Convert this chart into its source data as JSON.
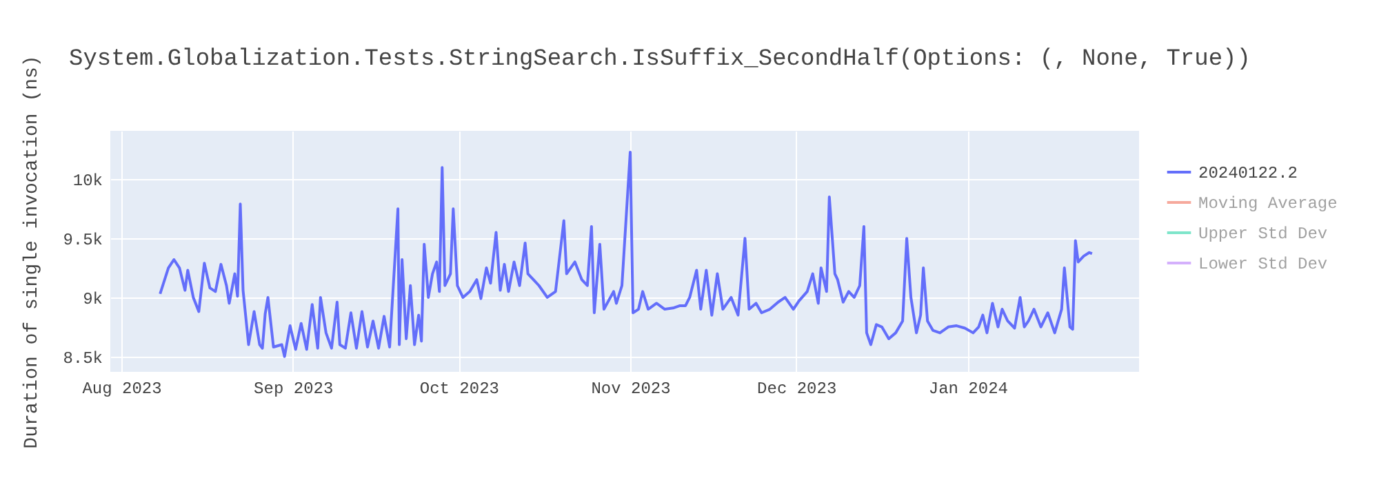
{
  "chart_data": {
    "type": "line",
    "title": "System.Globalization.Tests.StringSearch.IsSuffix_SecondHalf(Options: (, None, True))",
    "ylabel": "Duration of single invocation (ns)",
    "x": [
      "2023-08-08",
      "2023-08-09T12:00",
      "2023-08-10T12:00",
      "2023-08-11T12:00",
      "2023-08-12T12:00",
      "2023-08-13",
      "2023-08-14",
      "2023-08-15",
      "2023-08-16",
      "2023-08-17",
      "2023-08-18",
      "2023-08-19",
      "2023-08-20",
      "2023-08-20T12:00",
      "2023-08-21T12:00",
      "2023-08-22",
      "2023-08-22T12:00",
      "2023-08-23",
      "2023-08-24",
      "2023-08-25",
      "2023-08-26",
      "2023-08-26T12:00",
      "2023-08-27",
      "2023-08-27T12:00",
      "2023-08-28T12:00",
      "2023-08-30",
      "2023-08-30T12:00",
      "2023-08-31T12:00",
      "2023-09-01T12:00",
      "2023-09-02T12:00",
      "2023-09-03T12:00",
      "2023-09-04T12:00",
      "2023-09-05T12:00",
      "2023-09-06",
      "2023-09-07",
      "2023-09-08",
      "2023-09-09",
      "2023-09-09T12:00",
      "2023-09-10T12:00",
      "2023-09-11T12:00",
      "2023-09-12T12:00",
      "2023-09-13T12:00",
      "2023-09-14T12:00",
      "2023-09-15T12:00",
      "2023-09-16T12:00",
      "2023-09-17T12:00",
      "2023-09-18T12:00",
      "2023-09-20",
      "2023-09-20T06:00",
      "2023-09-20T18:00",
      "2023-09-21T12:00",
      "2023-09-22T06:00",
      "2023-09-23",
      "2023-09-23T18:00",
      "2023-09-24T06:00",
      "2023-09-24T18:00",
      "2023-09-25T12:00",
      "2023-09-26T06:00",
      "2023-09-27",
      "2023-09-27T12:00",
      "2023-09-28",
      "2023-09-28T12:00",
      "2023-09-29T12:00",
      "2023-09-30",
      "2023-09-30T18:00",
      "2023-10-01T18:00",
      "2023-10-03",
      "2023-10-04T06:00",
      "2023-10-05",
      "2023-10-06",
      "2023-10-06T18:00",
      "2023-10-07T18:00",
      "2023-10-08T12:00",
      "2023-10-09T06:00",
      "2023-10-10",
      "2023-10-11",
      "2023-10-12",
      "2023-10-13",
      "2023-10-13T12:00",
      "2023-10-14T12:00",
      "2023-10-15T12:00",
      "2023-10-17",
      "2023-10-18T12:00",
      "2023-10-20",
      "2023-10-20T12:00",
      "2023-10-22",
      "2023-10-23T06:00",
      "2023-10-24T06:00",
      "2023-10-25",
      "2023-10-25T12:00",
      "2023-10-26T12:00",
      "2023-10-27T06:00",
      "2023-10-29",
      "2023-10-29T12:00",
      "2023-10-30T12:00",
      "2023-11-01",
      "2023-11-01T12:00",
      "2023-11-02T12:00",
      "2023-11-03T06:00",
      "2023-11-04T06:00",
      "2023-11-05T18:00",
      "2023-11-07T06:00",
      "2023-11-08T18:00",
      "2023-11-10",
      "2023-11-11",
      "2023-11-11T18:00",
      "2023-11-13",
      "2023-11-13T18:00",
      "2023-11-14T18:00",
      "2023-11-15T18:00",
      "2023-11-16T18:00",
      "2023-11-17T18:00",
      "2023-11-19T06:00",
      "2023-11-20T12:00",
      "2023-11-21T18:00",
      "2023-11-22T12:00",
      "2023-11-23T18:00",
      "2023-11-24T18:00",
      "2023-11-26T06:00",
      "2023-11-27T18:00",
      "2023-11-29",
      "2023-11-30T12:00",
      "2023-12-01T12:00",
      "2023-12-03",
      "2023-12-04",
      "2023-12-05",
      "2023-12-05T12:00",
      "2023-12-06T12:00",
      "2023-12-07",
      "2023-12-08",
      "2023-12-08T12:00",
      "2023-12-09T12:00",
      "2023-12-10T12:00",
      "2023-12-11T12:00",
      "2023-12-12T12:00",
      "2023-12-13T06:00",
      "2023-12-13T18:00",
      "2023-12-14T12:00",
      "2023-12-15T12:00",
      "2023-12-16T12:00",
      "2023-12-17T18:00",
      "2023-12-19",
      "2023-12-20T06:00",
      "2023-12-21",
      "2023-12-21T18:00",
      "2023-12-22T18:00",
      "2023-12-23T12:00",
      "2023-12-24",
      "2023-12-24T18:00",
      "2023-12-25T18:00",
      "2023-12-27",
      "2023-12-28T12:00",
      "2023-12-30",
      "2023-12-31T12:00",
      "2024-01-02",
      "2024-01-03",
      "2024-01-03T18:00",
      "2024-01-04T12:00",
      "2024-01-05T12:00",
      "2024-01-06T12:00",
      "2024-01-07T06:00",
      "2024-01-08T06:00",
      "2024-01-09T12:00",
      "2024-01-10T12:00",
      "2024-01-11T06:00",
      "2024-01-12",
      "2024-01-13",
      "2024-01-14T06:00",
      "2024-01-15T12:00",
      "2024-01-16T18:00",
      "2024-01-18",
      "2024-01-18T12:00",
      "2024-01-19T12:00",
      "2024-01-20",
      "2024-01-20T12:00",
      "2024-01-21",
      "2024-01-22",
      "2024-01-23",
      "2024-01-23T12:00"
    ],
    "series": [
      {
        "name": "20240122.2",
        "color": "#636efa",
        "values": [
          9030,
          9250,
          9320,
          9250,
          9060,
          9230,
          9000,
          8880,
          9290,
          9080,
          9050,
          9280,
          9100,
          8950,
          9200,
          9010,
          9790,
          9060,
          8600,
          8880,
          8600,
          8570,
          8860,
          9000,
          8580,
          8600,
          8500,
          8760,
          8560,
          8780,
          8560,
          8940,
          8570,
          9000,
          8700,
          8570,
          8960,
          8600,
          8570,
          8870,
          8570,
          8880,
          8580,
          8800,
          8570,
          8840,
          8580,
          9750,
          8600,
          9320,
          8650,
          9100,
          8600,
          8850,
          8630,
          9450,
          9000,
          9200,
          9300,
          9050,
          10100,
          9100,
          9200,
          9750,
          9100,
          9000,
          9050,
          9150,
          8990,
          9250,
          9120,
          9550,
          9060,
          9280,
          9050,
          9300,
          9100,
          9460,
          9200,
          9150,
          9100,
          9000,
          9050,
          9650,
          9200,
          9300,
          9150,
          9100,
          9600,
          8870,
          9450,
          8900,
          9050,
          8950,
          9100,
          10230,
          8870,
          8900,
          9050,
          8900,
          8950,
          8900,
          8910,
          8930,
          8930,
          9000,
          9230,
          8900,
          9230,
          8850,
          9200,
          8900,
          9000,
          8850,
          9500,
          8900,
          8950,
          8870,
          8900,
          8960,
          9000,
          8900,
          8970,
          9050,
          9200,
          8950,
          9250,
          9050,
          9850,
          9200,
          9150,
          8960,
          9050,
          9000,
          9100,
          9600,
          8700,
          8600,
          8770,
          8750,
          8650,
          8700,
          8800,
          9500,
          9000,
          8700,
          8850,
          9250,
          8800,
          8720,
          8700,
          8750,
          8760,
          8740,
          8700,
          8750,
          8850,
          8700,
          8950,
          8750,
          8900,
          8800,
          8740,
          9000,
          8750,
          8800,
          8900,
          8750,
          8870,
          8700,
          8900,
          9250,
          8750,
          8730,
          9480,
          9300,
          9350,
          9380,
          9370
        ]
      },
      {
        "name": "Moving Average",
        "color": "#ef553b",
        "values": [
          null,
          null,
          null,
          null,
          null,
          null,
          null,
          null,
          null,
          null,
          null,
          null,
          null,
          null,
          null,
          null,
          null,
          null,
          null,
          null,
          null,
          null,
          null,
          null,
          null,
          null,
          null,
          null,
          null,
          null,
          null,
          null,
          null,
          null,
          null,
          null,
          null,
          null,
          null,
          null,
          null,
          null,
          null,
          null,
          null,
          null,
          null,
          null,
          null,
          null,
          null,
          null,
          null,
          null,
          null,
          null,
          null,
          null,
          null,
          null,
          null,
          null,
          null,
          null,
          null,
          null,
          null,
          null,
          null,
          null,
          null,
          null,
          null,
          null,
          null,
          null,
          null,
          null,
          null,
          null,
          null,
          null,
          null,
          null,
          null,
          null,
          null,
          null,
          null,
          null,
          null,
          null,
          null,
          null,
          null,
          null,
          null,
          null,
          null,
          null,
          null,
          null,
          null,
          null,
          null,
          null,
          null,
          null,
          null,
          null,
          null,
          null,
          null,
          null,
          null,
          null,
          null,
          null,
          null,
          null,
          null,
          null,
          null,
          null,
          null,
          null,
          null,
          null,
          null,
          null,
          null,
          null,
          null,
          null,
          null,
          null,
          null,
          null,
          null,
          null,
          null,
          null,
          null,
          null,
          null,
          null,
          null,
          null,
          null,
          null,
          null,
          null,
          null,
          null,
          null,
          null,
          null,
          null,
          null,
          null,
          null,
          null,
          null,
          null,
          null,
          null,
          null,
          null,
          null,
          null,
          null,
          null,
          null,
          null,
          null,
          null,
          null,
          null,
          null
        ]
      },
      {
        "name": "Upper Std Dev",
        "color": "#00cc96",
        "values": [
          null,
          null,
          null,
          null,
          null,
          null,
          null,
          null,
          null,
          null,
          null,
          null,
          null,
          null,
          null,
          null,
          null,
          null,
          null,
          null,
          null,
          null,
          null,
          null,
          null,
          null,
          null,
          null,
          null,
          null,
          null,
          null,
          null,
          null,
          null,
          null,
          null,
          null,
          null,
          null,
          null,
          null,
          null,
          null,
          null,
          null,
          null,
          null,
          null,
          null,
          null,
          null,
          null,
          null,
          null,
          null,
          null,
          null,
          null,
          null,
          null,
          null,
          null,
          null,
          null,
          null,
          null,
          null,
          null,
          null,
          null,
          null,
          null,
          null,
          null,
          null,
          null,
          null,
          null,
          null,
          null,
          null,
          null,
          null,
          null,
          null,
          null,
          null,
          null,
          null,
          null,
          null,
          null,
          null,
          null,
          null,
          null,
          null,
          null,
          null,
          null,
          null,
          null,
          null,
          null,
          null,
          null,
          null,
          null,
          null,
          null,
          null,
          null,
          null,
          null,
          null,
          null,
          null,
          null,
          null,
          null,
          null,
          null,
          null,
          null,
          null,
          null,
          null,
          null,
          null,
          null,
          null,
          null,
          null,
          null,
          null,
          null,
          null,
          null,
          null,
          null,
          null,
          null,
          null,
          null,
          null,
          null,
          null,
          null,
          null,
          null,
          null,
          null,
          null,
          null,
          null,
          null,
          null,
          null,
          null,
          null,
          null,
          null,
          null,
          null,
          null,
          null,
          null,
          null,
          null,
          null,
          null,
          null,
          null,
          null,
          null,
          null,
          null,
          null
        ]
      },
      {
        "name": "Lower Std Dev",
        "color": "#ab63fa",
        "values": [
          null,
          null,
          null,
          null,
          null,
          null,
          null,
          null,
          null,
          null,
          null,
          null,
          null,
          null,
          null,
          null,
          null,
          null,
          null,
          null,
          null,
          null,
          null,
          null,
          null,
          null,
          null,
          null,
          null,
          null,
          null,
          null,
          null,
          null,
          null,
          null,
          null,
          null,
          null,
          null,
          null,
          null,
          null,
          null,
          null,
          null,
          null,
          null,
          null,
          null,
          null,
          null,
          null,
          null,
          null,
          null,
          null,
          null,
          null,
          null,
          null,
          null,
          null,
          null,
          null,
          null,
          null,
          null,
          null,
          null,
          null,
          null,
          null,
          null,
          null,
          null,
          null,
          null,
          null,
          null,
          null,
          null,
          null,
          null,
          null,
          null,
          null,
          null,
          null,
          null,
          null,
          null,
          null,
          null,
          null,
          null,
          null,
          null,
          null,
          null,
          null,
          null,
          null,
          null,
          null,
          null,
          null,
          null,
          null,
          null,
          null,
          null,
          null,
          null,
          null,
          null,
          null,
          null,
          null,
          null,
          null,
          null,
          null,
          null,
          null,
          null,
          null,
          null,
          null,
          null,
          null,
          null,
          null,
          null,
          null,
          null,
          null,
          null,
          null,
          null,
          null,
          null,
          null,
          null,
          null,
          null,
          null,
          null,
          null,
          null,
          null,
          null,
          null,
          null,
          null,
          null,
          null,
          null,
          null,
          null,
          null,
          null,
          null,
          null,
          null,
          null,
          null,
          null,
          null,
          null,
          null,
          null,
          null,
          null,
          null,
          null,
          null,
          null,
          null
        ]
      }
    ],
    "xlim": [
      "2023-07-30",
      "2024-02-01"
    ],
    "xticks": [
      {
        "value": "2023-08-01",
        "label": "Aug 2023"
      },
      {
        "value": "2023-09-01",
        "label": "Sep 2023"
      },
      {
        "value": "2023-10-01",
        "label": "Oct 2023"
      },
      {
        "value": "2023-11-01",
        "label": "Nov 2023"
      },
      {
        "value": "2023-12-01",
        "label": "Dec 2023"
      },
      {
        "value": "2024-01-01",
        "label": "Jan 2024"
      }
    ],
    "ylim": [
      8370,
      10410
    ],
    "yticks": [
      {
        "value": 8500,
        "label": "8.5k"
      },
      {
        "value": 9000,
        "label": "9k"
      },
      {
        "value": 9500,
        "label": "9.5k"
      },
      {
        "value": 10000,
        "label": "10k"
      }
    ],
    "grid": true,
    "legend": "top right"
  }
}
